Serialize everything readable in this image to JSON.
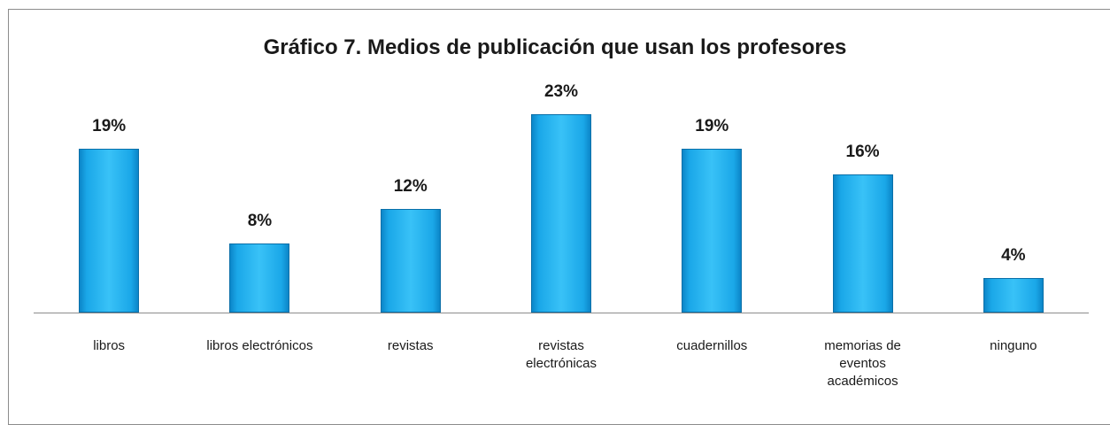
{
  "chart_data": {
    "type": "bar",
    "title": "Gráfico 7. Medios de publicación que usan los profesores",
    "categories": [
      "libros",
      "libros electrónicos",
      "revistas",
      "revistas\nelectrónicas",
      "cuadernillos",
      "memorias de\neventos\nacadémicos",
      "ninguno"
    ],
    "values": [
      19,
      8,
      12,
      23,
      19,
      16,
      4
    ],
    "value_labels": [
      "19%",
      "8%",
      "12%",
      "23%",
      "19%",
      "16%",
      "4%"
    ],
    "color": "#1aa7e8"
  }
}
